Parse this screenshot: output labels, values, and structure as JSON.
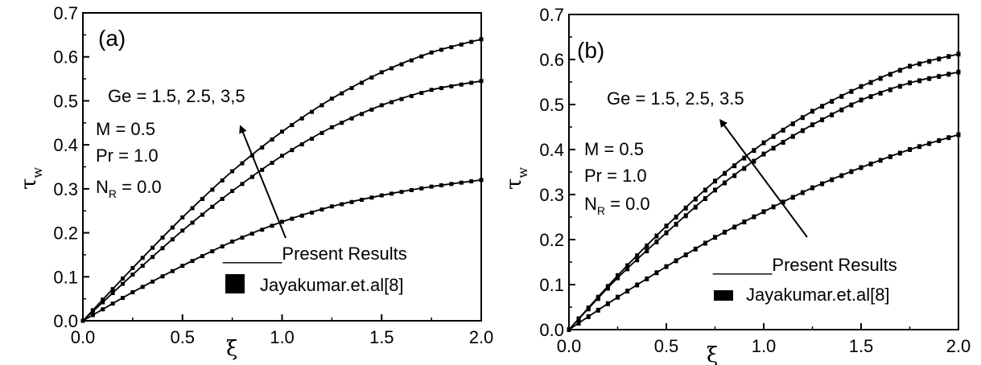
{
  "chart_data": [
    {
      "type": "line",
      "panel_label": "(a)",
      "xlabel": "ξ",
      "ylabel": "τ",
      "ylabel_sub": "w",
      "xlim": [
        0.0,
        2.0
      ],
      "ylim": [
        0.0,
        0.7
      ],
      "x_ticks": [
        "0.0",
        "0.5",
        "1.0",
        "1.5",
        "2.0"
      ],
      "y_ticks": [
        "0.0",
        "0.1",
        "0.2",
        "0.3",
        "0.4",
        "0.5",
        "0.6",
        "0.7"
      ],
      "annotations": {
        "ge": "Ge = 1.5, 2.5, 3,5",
        "m": "M = 0.5",
        "pr": "Pr = 1.0",
        "nr_main": "N",
        "nr_sub": "R",
        "nr_value": " = 0.0"
      },
      "legend": {
        "line": "______Present Results",
        "marker": "Jayakumar.et.al[8]",
        "placement": "bottom-right"
      },
      "series": [
        {
          "x": [
            0.0,
            0.25,
            0.5,
            0.75,
            1.0,
            1.25,
            1.5,
            1.75,
            2.0
          ],
          "values": [
            0.0,
            0.12,
            0.235,
            0.34,
            0.43,
            0.505,
            0.565,
            0.61,
            0.64
          ]
        },
        {
          "x": [
            0.0,
            0.25,
            0.5,
            0.75,
            1.0,
            1.25,
            1.5,
            1.75,
            2.0
          ],
          "values": [
            0.0,
            0.105,
            0.205,
            0.295,
            0.375,
            0.44,
            0.49,
            0.525,
            0.545
          ]
        },
        {
          "x": [
            0.0,
            0.25,
            0.5,
            0.75,
            1.0,
            1.25,
            1.5,
            1.75,
            2.0
          ],
          "values": [
            0.0,
            0.065,
            0.125,
            0.18,
            0.225,
            0.26,
            0.285,
            0.305,
            0.32
          ]
        }
      ]
    },
    {
      "type": "line",
      "panel_label": "(b)",
      "xlabel": "ξ",
      "ylabel": "τ",
      "ylabel_sub": "w",
      "xlim": [
        0.0,
        2.0
      ],
      "ylim": [
        0.0,
        0.7
      ],
      "x_ticks": [
        "0.0",
        "0.5",
        "1.0",
        "1.5",
        "2.0"
      ],
      "y_ticks": [
        "0.0",
        "0.1",
        "0.2",
        "0.3",
        "0.4",
        "0.5",
        "0.6",
        "0.7"
      ],
      "annotations": {
        "ge": "Ge = 1.5, 2.5, 3.5",
        "m": "M = 0.5",
        "pr": "Pr = 1.0",
        "nr_main": "N",
        "nr_sub": "R",
        "nr_value": " = 0.0"
      },
      "legend": {
        "line": "______Present Results",
        "marker": "Jayakumar.et.al[8]",
        "placement": "bottom-right"
      },
      "series": [
        {
          "x": [
            0.0,
            0.25,
            0.5,
            0.75,
            1.0,
            1.25,
            1.5,
            1.75,
            2.0
          ],
          "values": [
            0.0,
            0.12,
            0.23,
            0.33,
            0.415,
            0.485,
            0.54,
            0.585,
            0.612
          ]
        },
        {
          "x": [
            0.0,
            0.25,
            0.5,
            0.75,
            1.0,
            1.25,
            1.5,
            1.75,
            2.0
          ],
          "values": [
            0.0,
            0.115,
            0.215,
            0.31,
            0.39,
            0.455,
            0.51,
            0.548,
            0.572
          ]
        },
        {
          "x": [
            0.0,
            0.25,
            0.5,
            0.75,
            1.0,
            1.25,
            1.5,
            1.75,
            2.0
          ],
          "values": [
            0.0,
            0.072,
            0.14,
            0.205,
            0.262,
            0.315,
            0.36,
            0.4,
            0.433
          ]
        }
      ]
    }
  ]
}
